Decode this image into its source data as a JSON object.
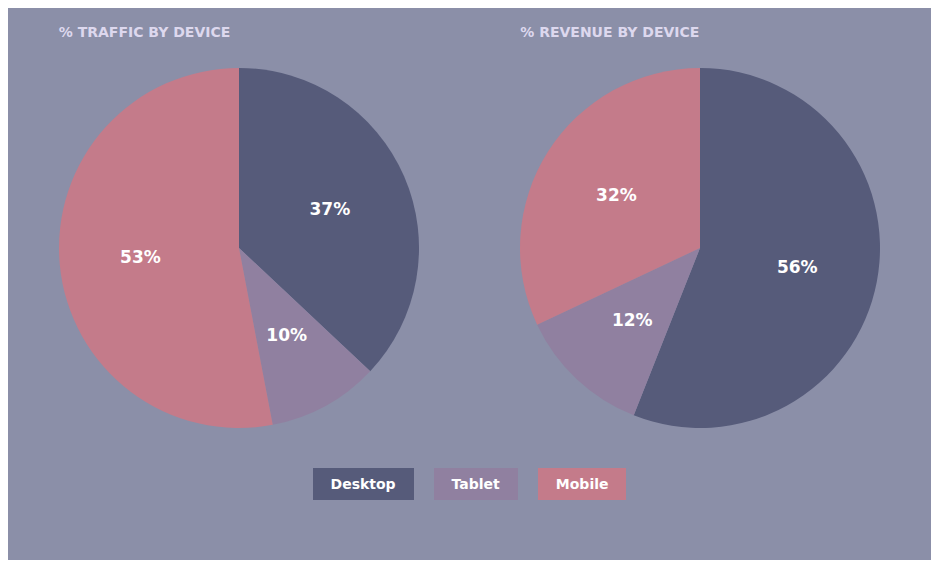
{
  "chart_data": [
    {
      "type": "pie",
      "title": "% TRAFFIC BY DEVICE",
      "categories": [
        "Desktop",
        "Tablet",
        "Mobile"
      ],
      "values": [
        37,
        10,
        53
      ],
      "value_labels": [
        "37%",
        "10%",
        "53%"
      ],
      "colors": [
        "#565b7a",
        "#9080a0",
        "#c47b8a"
      ],
      "data_labels": true,
      "legend": "bottom"
    },
    {
      "type": "pie",
      "title": "% REVENUE BY DEVICE",
      "categories": [
        "Desktop",
        "Tablet",
        "Mobile"
      ],
      "values": [
        56,
        12,
        32
      ],
      "value_labels": [
        "56%",
        "12%",
        "32%"
      ],
      "colors": [
        "#565b7a",
        "#9080a0",
        "#c47b8a"
      ],
      "data_labels": true,
      "legend": "bottom"
    }
  ]
}
